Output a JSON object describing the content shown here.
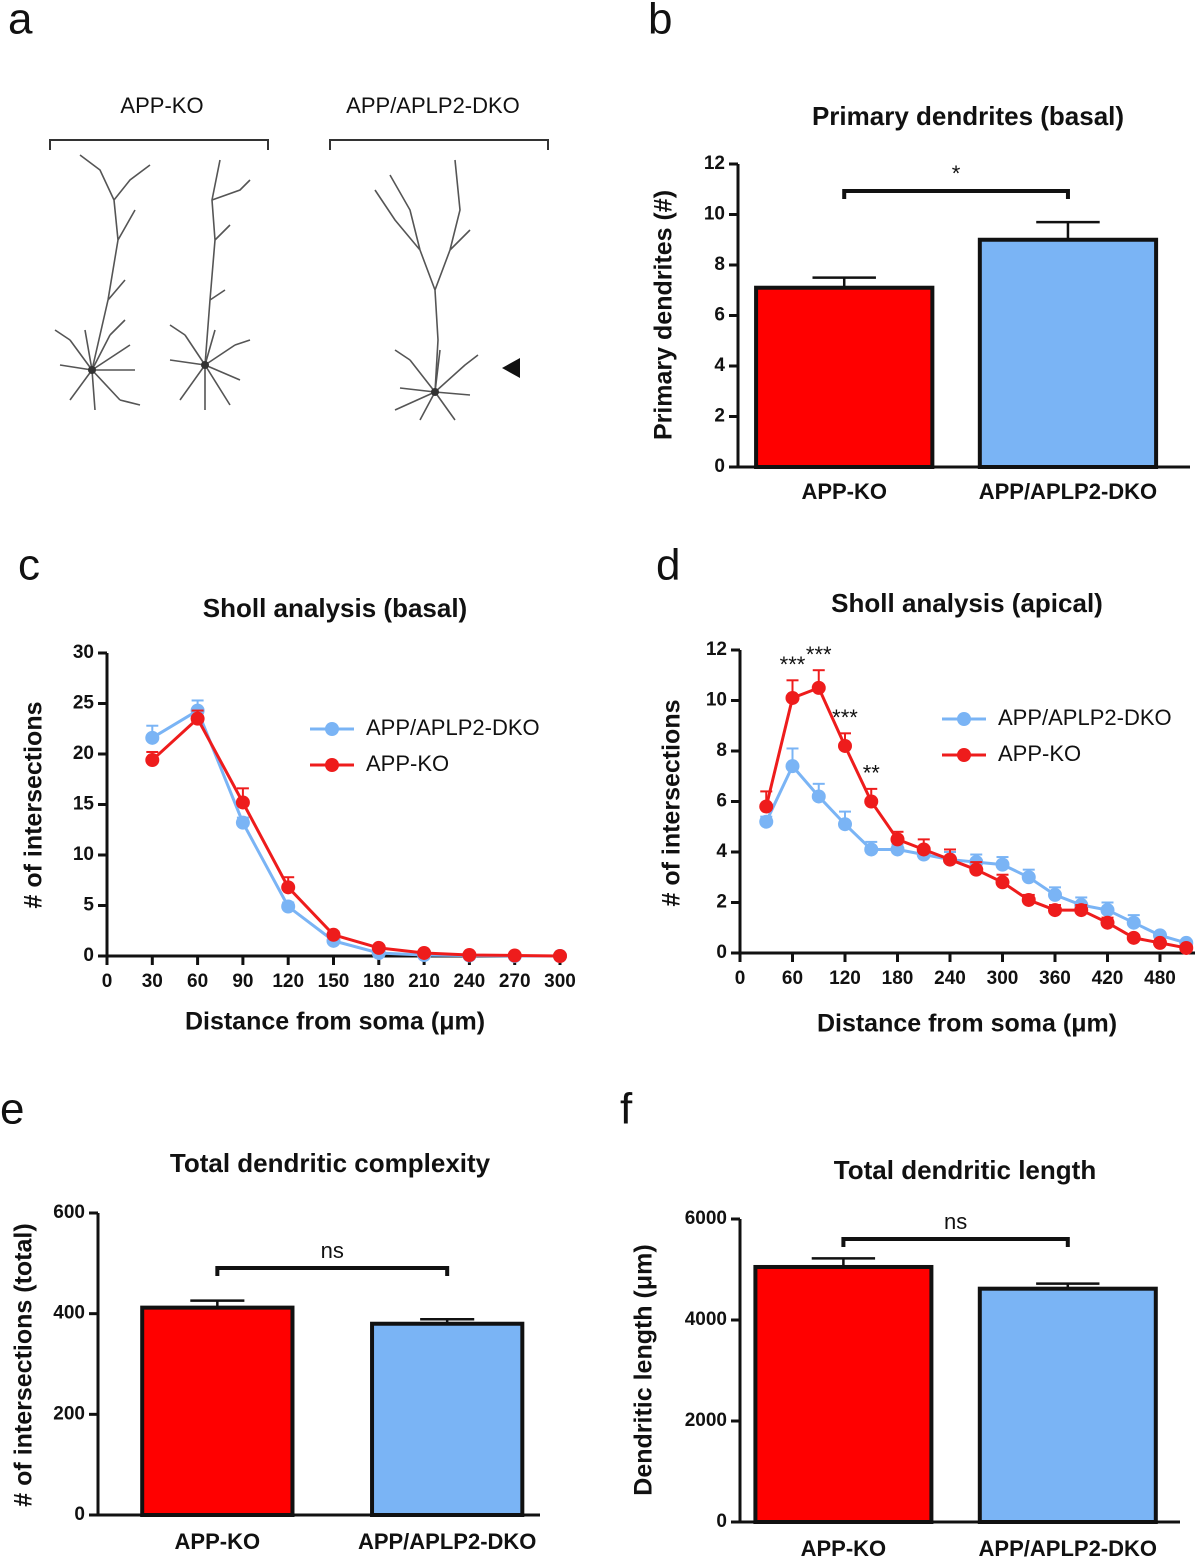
{
  "panel_a": {
    "letter": "a",
    "labels": [
      "APP-KO",
      "APP/APLP2-DKO"
    ]
  },
  "chart_data": [
    {
      "type": "bar",
      "letter": "b",
      "title": "Primary dendrites (basal)",
      "ylabel": "Primary dendrites (#)",
      "categories": [
        "APP-KO",
        "APP/APLP2-DKO"
      ],
      "values": [
        7.1,
        9.0
      ],
      "errors": [
        0.4,
        0.7
      ],
      "colors": [
        "#ff0000",
        "#7ab4f5"
      ],
      "ylim": [
        0,
        12
      ],
      "yticks": [
        0,
        2,
        4,
        6,
        8,
        10,
        12
      ],
      "significance": "*"
    },
    {
      "type": "line",
      "letter": "c",
      "title": "Sholl analysis (basal)",
      "xlabel": "Distance from soma (μm)",
      "ylabel": "# of intersections",
      "x": [
        30,
        60,
        90,
        120,
        150,
        180,
        210,
        240,
        270,
        300
      ],
      "series": [
        {
          "name": "APP/APLP2-DKO",
          "color": "#7ab4f5",
          "values": [
            21.6,
            24.3,
            13.2,
            4.9,
            1.5,
            0.3,
            0.1,
            0.05,
            0,
            0
          ],
          "errors": [
            1.2,
            1.0,
            0.5,
            0.4,
            0.2,
            0.1,
            0.05,
            0.02,
            0,
            0
          ]
        },
        {
          "name": "APP-KO",
          "color": "#ee1c1c",
          "values": [
            19.4,
            23.5,
            15.2,
            6.8,
            2.1,
            0.8,
            0.3,
            0.1,
            0.05,
            0
          ],
          "errors": [
            0.8,
            0.8,
            1.4,
            1.0,
            0.3,
            0.2,
            0.1,
            0.05,
            0.02,
            0
          ]
        }
      ],
      "xlim": [
        0,
        300
      ],
      "xticks": [
        0,
        30,
        60,
        90,
        120,
        150,
        180,
        210,
        240,
        270,
        300
      ],
      "ylim": [
        0,
        30
      ],
      "yticks": [
        0,
        5,
        10,
        15,
        20,
        25,
        30
      ],
      "legend": "upper right"
    },
    {
      "type": "line",
      "letter": "d",
      "title": "Sholl analysis (apical)",
      "xlabel": "Distance from soma (μm)",
      "ylabel": "# of intersections",
      "x": [
        30,
        60,
        90,
        120,
        150,
        180,
        210,
        240,
        270,
        300,
        330,
        360,
        390,
        420,
        450,
        480,
        510
      ],
      "series": [
        {
          "name": "APP/APLP2-DKO",
          "color": "#7ab4f5",
          "values": [
            5.2,
            7.4,
            6.2,
            5.1,
            4.1,
            4.1,
            3.9,
            3.7,
            3.6,
            3.5,
            3.0,
            2.3,
            1.9,
            1.7,
            1.2,
            0.7,
            0.4
          ],
          "errors": [
            0.2,
            0.7,
            0.5,
            0.5,
            0.3,
            0.2,
            0.2,
            0.3,
            0.3,
            0.3,
            0.3,
            0.3,
            0.3,
            0.3,
            0.3,
            0.1,
            0.1
          ]
        },
        {
          "name": "APP-KO",
          "color": "#ee1c1c",
          "values": [
            5.8,
            10.1,
            10.5,
            8.2,
            6.0,
            4.5,
            4.1,
            3.7,
            3.3,
            2.8,
            2.1,
            1.7,
            1.7,
            1.2,
            0.6,
            0.4,
            0.2
          ],
          "errors": [
            0.6,
            0.7,
            0.7,
            0.5,
            0.5,
            0.3,
            0.4,
            0.4,
            0.3,
            0.3,
            0.2,
            0.2,
            0.2,
            0.2,
            0.1,
            0.1,
            0.1
          ]
        }
      ],
      "xlim": [
        0,
        520
      ],
      "xticks": [
        0,
        60,
        120,
        180,
        240,
        300,
        360,
        420,
        480
      ],
      "ylim": [
        0,
        12
      ],
      "yticks": [
        0,
        2,
        4,
        6,
        8,
        10,
        12
      ],
      "legend": "upper right",
      "annotations": [
        {
          "text": "***",
          "x": 60
        },
        {
          "text": "***",
          "x": 90
        },
        {
          "text": "***",
          "x": 120
        },
        {
          "text": "**",
          "x": 150
        }
      ]
    },
    {
      "type": "bar",
      "letter": "e",
      "title": "Total dendritic complexity",
      "ylabel": "# of intersections (total)",
      "categories": [
        "APP-KO",
        "APP/APLP2-DKO"
      ],
      "values": [
        412,
        380
      ],
      "errors": [
        14,
        9
      ],
      "colors": [
        "#ff0000",
        "#7ab4f5"
      ],
      "ylim": [
        0,
        600
      ],
      "yticks": [
        0,
        200,
        400,
        600
      ],
      "significance": "ns"
    },
    {
      "type": "bar",
      "letter": "f",
      "title": "Total dendritic length",
      "ylabel": "Dendritic length (μm)",
      "categories": [
        "APP-KO",
        "APP/APLP2-DKO"
      ],
      "values": [
        5050,
        4620
      ],
      "errors": [
        170,
        100
      ],
      "colors": [
        "#ff0000",
        "#7ab4f5"
      ],
      "ylim": [
        0,
        6000
      ],
      "yticks": [
        0,
        2000,
        4000,
        6000
      ],
      "significance": "ns"
    }
  ]
}
